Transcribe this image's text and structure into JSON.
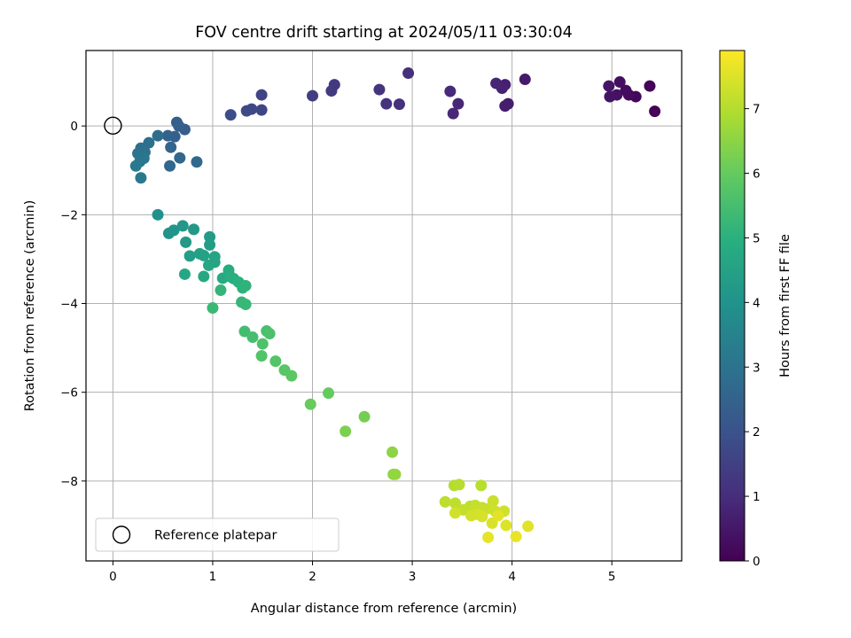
{
  "chart_data": {
    "type": "scatter",
    "title": "FOV centre drift starting at 2024/05/11 03:30:04",
    "xlabel": "Angular distance from reference (arcmin)",
    "ylabel": "Rotation from reference (arcmin)",
    "xlim": [
      -0.27,
      5.7
    ],
    "ylim": [
      -9.8,
      1.7
    ],
    "xticks": [
      0,
      1,
      2,
      3,
      4,
      5
    ],
    "yticks": [
      0,
      -2,
      -4,
      -6,
      -8
    ],
    "grid": true,
    "legend": {
      "position": "lower-left",
      "entries": [
        "Reference platepar"
      ]
    },
    "reference_point": {
      "x": 0,
      "y": 0,
      "label": "Reference platepar"
    },
    "colorbar": {
      "label": "Hours from first FF file",
      "colormap": "viridis",
      "range": [
        0,
        7.9
      ],
      "ticks": [
        0,
        1,
        2,
        3,
        4,
        5,
        6,
        7
      ]
    },
    "points": [
      [
        5.43,
        0.33,
        0.05
      ],
      [
        5.38,
        0.9,
        0.1
      ],
      [
        5.24,
        0.66,
        0.15
      ],
      [
        5.17,
        0.7,
        0.2
      ],
      [
        5.14,
        0.8,
        0.25
      ],
      [
        5.08,
        0.99,
        0.3
      ],
      [
        5.05,
        0.7,
        0.35
      ],
      [
        4.98,
        0.66,
        0.4
      ],
      [
        4.97,
        0.9,
        0.45
      ],
      [
        4.13,
        1.05,
        0.55
      ],
      [
        3.96,
        0.5,
        0.6
      ],
      [
        3.93,
        0.45,
        0.65
      ],
      [
        3.93,
        0.93,
        0.7
      ],
      [
        3.9,
        0.85,
        0.75
      ],
      [
        3.84,
        0.96,
        0.8
      ],
      [
        3.46,
        0.5,
        0.85
      ],
      [
        3.41,
        0.28,
        0.9
      ],
      [
        3.38,
        0.78,
        0.95
      ],
      [
        2.96,
        1.19,
        1.05
      ],
      [
        2.87,
        0.49,
        1.1
      ],
      [
        2.74,
        0.5,
        1.15
      ],
      [
        2.67,
        0.82,
        1.2
      ],
      [
        2.22,
        0.93,
        1.3
      ],
      [
        2.19,
        0.79,
        1.35
      ],
      [
        2.0,
        0.68,
        1.45
      ],
      [
        1.49,
        0.7,
        1.6
      ],
      [
        1.49,
        0.36,
        1.65
      ],
      [
        1.39,
        0.38,
        1.7
      ],
      [
        1.34,
        0.34,
        1.75
      ],
      [
        1.18,
        0.25,
        1.85
      ],
      [
        0.72,
        -0.08,
        2.3
      ],
      [
        0.64,
        0.08,
        2.35
      ],
      [
        0.66,
        0.0,
        2.4
      ],
      [
        0.62,
        -0.24,
        2.45
      ],
      [
        0.55,
        -0.22,
        2.5
      ],
      [
        0.58,
        -0.48,
        2.55
      ],
      [
        0.67,
        -0.72,
        2.6
      ],
      [
        0.57,
        -0.9,
        2.65
      ],
      [
        0.84,
        -0.81,
        2.7
      ],
      [
        0.45,
        -0.22,
        2.8
      ],
      [
        0.36,
        -0.38,
        2.85
      ],
      [
        0.28,
        -0.5,
        2.9
      ],
      [
        0.32,
        -0.59,
        2.95
      ],
      [
        0.25,
        -0.62,
        3.0
      ],
      [
        0.31,
        -0.73,
        3.05
      ],
      [
        0.27,
        -0.8,
        3.1
      ],
      [
        0.23,
        -0.9,
        3.15
      ],
      [
        0.28,
        -1.17,
        3.2
      ],
      [
        0.45,
        -2.0,
        4.0
      ],
      [
        0.56,
        -2.42,
        4.05
      ],
      [
        0.61,
        -2.35,
        4.1
      ],
      [
        0.7,
        -2.25,
        4.15
      ],
      [
        0.81,
        -2.33,
        4.2
      ],
      [
        0.73,
        -2.62,
        4.25
      ],
      [
        0.97,
        -2.5,
        4.3
      ],
      [
        0.97,
        -2.68,
        4.35
      ],
      [
        0.77,
        -2.93,
        4.4
      ],
      [
        0.87,
        -2.88,
        4.45
      ],
      [
        0.91,
        -2.92,
        4.5
      ],
      [
        1.02,
        -2.95,
        4.55
      ],
      [
        1.02,
        -3.07,
        4.6
      ],
      [
        0.96,
        -3.14,
        4.65
      ],
      [
        0.72,
        -3.34,
        4.7
      ],
      [
        0.91,
        -3.39,
        4.75
      ],
      [
        1.1,
        -3.43,
        4.8
      ],
      [
        1.16,
        -3.25,
        4.85
      ],
      [
        1.21,
        -3.44,
        4.9
      ],
      [
        1.18,
        -3.4,
        4.95
      ],
      [
        1.26,
        -3.52,
        5.0
      ],
      [
        1.3,
        -3.65,
        5.05
      ],
      [
        1.33,
        -3.6,
        5.1
      ],
      [
        1.08,
        -3.7,
        5.15
      ],
      [
        1.29,
        -3.97,
        5.2
      ],
      [
        1.33,
        -4.02,
        5.25
      ],
      [
        1.0,
        -4.1,
        5.3
      ],
      [
        1.32,
        -4.63,
        5.45
      ],
      [
        1.4,
        -4.76,
        5.5
      ],
      [
        1.54,
        -4.62,
        5.55
      ],
      [
        1.57,
        -4.68,
        5.6
      ],
      [
        1.5,
        -4.91,
        5.65
      ],
      [
        1.49,
        -5.18,
        5.7
      ],
      [
        1.63,
        -5.3,
        5.75
      ],
      [
        1.72,
        -5.5,
        5.8
      ],
      [
        1.79,
        -5.63,
        5.85
      ],
      [
        2.16,
        -6.02,
        6.0
      ],
      [
        1.98,
        -6.27,
        6.05
      ],
      [
        2.52,
        -6.55,
        6.2
      ],
      [
        2.33,
        -6.88,
        6.3
      ],
      [
        2.8,
        -7.35,
        6.5
      ],
      [
        2.81,
        -7.85,
        6.55
      ],
      [
        2.83,
        -7.85,
        6.6
      ],
      [
        3.42,
        -8.1,
        7.0
      ],
      [
        3.47,
        -8.08,
        7.02
      ],
      [
        3.69,
        -8.1,
        7.05
      ],
      [
        3.33,
        -8.47,
        7.1
      ],
      [
        3.43,
        -8.5,
        7.12
      ],
      [
        3.58,
        -8.57,
        7.15
      ],
      [
        3.51,
        -8.65,
        7.17
      ],
      [
        3.63,
        -8.55,
        7.2
      ],
      [
        3.7,
        -8.6,
        7.22
      ],
      [
        3.74,
        -8.63,
        7.25
      ],
      [
        3.81,
        -8.45,
        7.27
      ],
      [
        3.83,
        -8.68,
        7.3
      ],
      [
        3.92,
        -8.68,
        7.32
      ],
      [
        3.43,
        -8.72,
        7.35
      ],
      [
        3.59,
        -8.78,
        7.37
      ],
      [
        3.65,
        -8.75,
        7.4
      ],
      [
        3.7,
        -8.8,
        7.42
      ],
      [
        3.8,
        -8.95,
        7.45
      ],
      [
        3.94,
        -9.0,
        7.5
      ],
      [
        4.16,
        -9.02,
        7.55
      ],
      [
        3.86,
        -8.78,
        7.57
      ],
      [
        3.76,
        -9.27,
        7.6
      ],
      [
        4.04,
        -9.25,
        7.65
      ]
    ]
  }
}
